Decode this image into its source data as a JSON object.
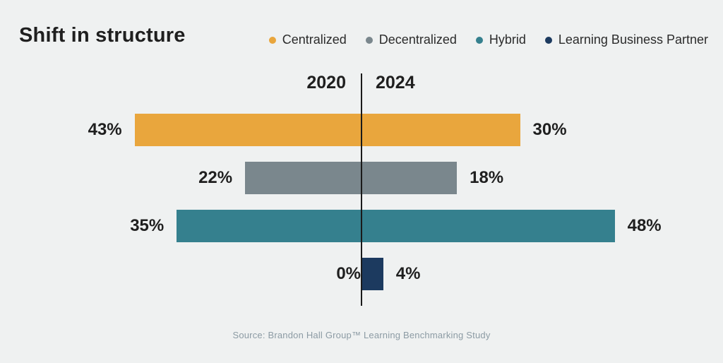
{
  "title": "Shift in structure",
  "legend": [
    {
      "label": "Centralized",
      "color": "#E9A63D",
      "icon": "dot-icon"
    },
    {
      "label": "Decentralized",
      "color": "#7A878D",
      "icon": "dot-icon"
    },
    {
      "label": "Hybrid",
      "color": "#35808E",
      "icon": "dot-icon"
    },
    {
      "label": "Learning Business Partner",
      "color": "#1C3A5F",
      "icon": "dot-icon"
    }
  ],
  "axis": {
    "left_year": "2020",
    "right_year": "2024"
  },
  "source": "Source: Brandon Hall Group™ Learning Benchmarking Study",
  "chart_data": {
    "type": "bar",
    "subtype": "diverging-horizontal",
    "title": "Shift in structure",
    "categories": [
      "Centralized",
      "Decentralized",
      "Hybrid",
      "Learning Business Partner"
    ],
    "series": [
      {
        "name": "2020",
        "side": "left",
        "values": [
          43,
          22,
          35,
          0
        ]
      },
      {
        "name": "2024",
        "side": "right",
        "values": [
          30,
          18,
          48,
          4
        ]
      }
    ],
    "unit": "%",
    "colors": [
      "#E9A63D",
      "#7A878D",
      "#35808E",
      "#1C3A5F"
    ],
    "legend_position": "top-right",
    "axis_line": "center-vertical",
    "grid": false
  },
  "colors": {
    "background": "#EFF1F1",
    "text": "#1F1F1F",
    "axis_line": "#1A1A1A",
    "source_text": "#8C9BA4"
  }
}
